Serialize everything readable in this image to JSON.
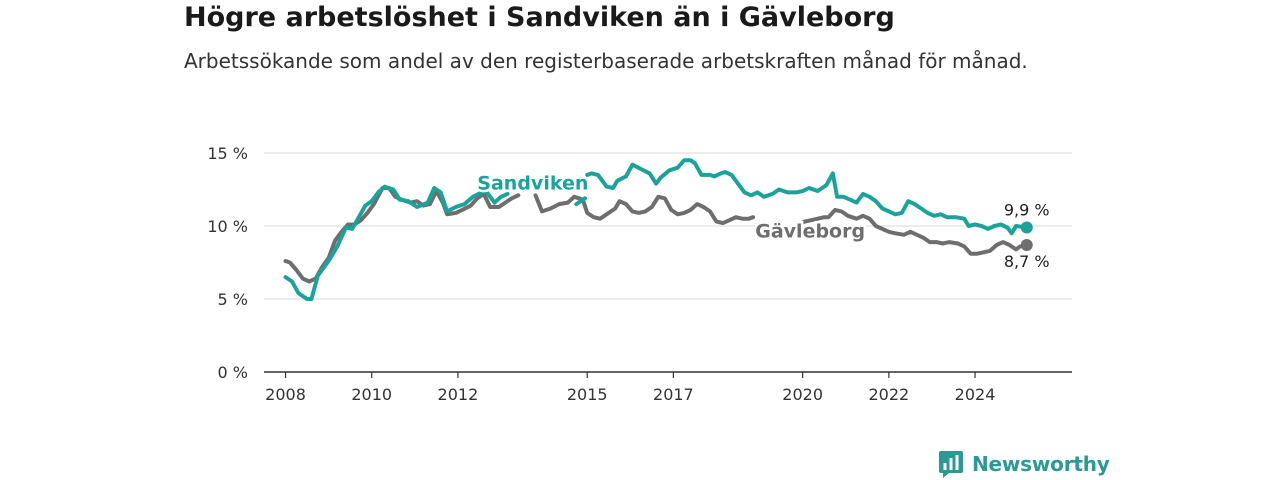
{
  "title": "Högre arbetslöshet i Sandviken än i Gävleborg",
  "subtitle": "Arbetssökande som andel av den registerbaserade arbetskraften månad för månad.",
  "brand": {
    "name": "Newsworthy",
    "icon": "newsworthy-chart-icon",
    "color": "#2a9a94"
  },
  "chart_data": {
    "type": "line",
    "title": "Högre arbetslöshet i Sandviken än i Gävleborg",
    "subtitle": "Arbetssökande som andel av den registerbaserade arbetskraften månad för månad.",
    "xlabel": "",
    "ylabel": "",
    "xlim": [
      2007.5,
      2026.25
    ],
    "ylim": [
      0,
      15
    ],
    "x_ticks": [
      2008,
      2010,
      2012,
      2015,
      2017,
      2020,
      2022,
      2024
    ],
    "x_tick_labels": [
      "2008",
      "2010",
      "2012",
      "2015",
      "2017",
      "2020",
      "2022",
      "2024"
    ],
    "y_ticks": [
      0,
      5,
      10,
      15
    ],
    "y_tick_labels": [
      "0 %",
      "5 %",
      "10 %",
      "15 %"
    ],
    "grid": true,
    "legend": "inline labels",
    "series": [
      {
        "name": "Sandviken",
        "color": "#1aa39a",
        "end_label": "9,9 %",
        "points": [
          [
            2008.0,
            6.5
          ],
          [
            2008.15,
            6.2
          ],
          [
            2008.3,
            5.4
          ],
          [
            2008.5,
            5.0
          ],
          [
            2008.6,
            5.0
          ],
          [
            2008.75,
            6.6
          ],
          [
            2009.0,
            7.6
          ],
          [
            2009.2,
            8.6
          ],
          [
            2009.4,
            9.9
          ],
          [
            2009.55,
            9.8
          ],
          [
            2009.7,
            10.6
          ],
          [
            2009.85,
            11.4
          ],
          [
            2010.0,
            11.7
          ],
          [
            2010.15,
            12.3
          ],
          [
            2010.3,
            12.7
          ],
          [
            2010.5,
            12.5
          ],
          [
            2010.65,
            11.8
          ],
          [
            2010.85,
            11.7
          ],
          [
            2011.05,
            11.3
          ],
          [
            2011.3,
            11.6
          ],
          [
            2011.45,
            12.6
          ],
          [
            2011.6,
            12.3
          ],
          [
            2011.75,
            11.0
          ],
          [
            2011.95,
            11.3
          ],
          [
            2012.15,
            11.5
          ],
          [
            2012.35,
            12.0
          ],
          [
            2012.55,
            12.3
          ],
          [
            2012.65,
            12.4
          ],
          [
            2012.85,
            11.6
          ],
          [
            2013.0,
            12.0
          ],
          [
            2013.15,
            12.2
          ],
          [
            null,
            null
          ],
          [
            2014.75,
            11.5
          ],
          [
            2014.95,
            11.9
          ],
          [
            null,
            null
          ],
          [
            2015.0,
            13.5
          ],
          [
            2015.1,
            13.6
          ],
          [
            2015.25,
            13.5
          ],
          [
            2015.45,
            12.7
          ],
          [
            2015.6,
            12.6
          ],
          [
            2015.7,
            13.1
          ],
          [
            2015.9,
            13.4
          ],
          [
            2016.05,
            14.2
          ],
          [
            2016.25,
            13.9
          ],
          [
            2016.45,
            13.6
          ],
          [
            2016.6,
            12.9
          ],
          [
            2016.7,
            13.3
          ],
          [
            2016.9,
            13.8
          ],
          [
            2017.1,
            14.0
          ],
          [
            2017.25,
            14.5
          ],
          [
            2017.4,
            14.5
          ],
          [
            2017.5,
            14.3
          ],
          [
            2017.65,
            13.5
          ],
          [
            2017.85,
            13.5
          ],
          [
            2017.95,
            13.4
          ],
          [
            2018.1,
            13.6
          ],
          [
            2018.2,
            13.7
          ],
          [
            2018.35,
            13.5
          ],
          [
            2018.5,
            12.9
          ],
          [
            2018.65,
            12.3
          ],
          [
            2018.8,
            12.1
          ],
          [
            2018.95,
            12.3
          ],
          [
            2019.1,
            12.0
          ],
          [
            2019.3,
            12.2
          ],
          [
            2019.45,
            12.5
          ],
          [
            2019.65,
            12.3
          ],
          [
            2019.85,
            12.3
          ],
          [
            2020.0,
            12.4
          ],
          [
            2020.15,
            12.6
          ],
          [
            2020.35,
            12.4
          ],
          [
            2020.55,
            12.8
          ],
          [
            2020.7,
            13.6
          ],
          [
            2020.8,
            12.0
          ],
          [
            2020.95,
            12.0
          ],
          [
            2021.1,
            11.8
          ],
          [
            2021.25,
            11.6
          ],
          [
            2021.4,
            12.2
          ],
          [
            2021.55,
            12.0
          ],
          [
            2021.7,
            11.7
          ],
          [
            2021.85,
            11.2
          ],
          [
            2022.0,
            11.0
          ],
          [
            2022.15,
            10.8
          ],
          [
            2022.3,
            10.9
          ],
          [
            2022.45,
            11.7
          ],
          [
            2022.6,
            11.5
          ],
          [
            2022.75,
            11.2
          ],
          [
            2022.9,
            10.9
          ],
          [
            2023.05,
            10.7
          ],
          [
            2023.2,
            10.8
          ],
          [
            2023.35,
            10.6
          ],
          [
            2023.55,
            10.6
          ],
          [
            2023.75,
            10.5
          ],
          [
            2023.85,
            10.0
          ],
          [
            2024.0,
            10.1
          ],
          [
            2024.15,
            10.0
          ],
          [
            2024.3,
            9.8
          ],
          [
            2024.45,
            10.0
          ],
          [
            2024.6,
            10.1
          ],
          [
            2024.75,
            9.9
          ],
          [
            2024.85,
            9.5
          ],
          [
            2024.95,
            10.0
          ],
          [
            2025.2,
            9.9
          ]
        ]
      },
      {
        "name": "Gävleborg",
        "color": "#6e6e6e",
        "end_label": "8,7 %",
        "points": [
          [
            2008.0,
            7.6
          ],
          [
            2008.1,
            7.5
          ],
          [
            2008.25,
            7.0
          ],
          [
            2008.4,
            6.4
          ],
          [
            2008.55,
            6.2
          ],
          [
            2008.7,
            6.4
          ],
          [
            2008.85,
            7.2
          ],
          [
            2009.0,
            7.8
          ],
          [
            2009.15,
            9.0
          ],
          [
            2009.3,
            9.6
          ],
          [
            2009.45,
            10.1
          ],
          [
            2009.6,
            10.1
          ],
          [
            2009.75,
            10.4
          ],
          [
            2009.9,
            10.9
          ],
          [
            2010.05,
            11.5
          ],
          [
            2010.25,
            12.6
          ],
          [
            2010.4,
            12.6
          ],
          [
            2010.55,
            12.0
          ],
          [
            2010.7,
            11.8
          ],
          [
            2010.9,
            11.6
          ],
          [
            2011.05,
            11.7
          ],
          [
            2011.2,
            11.4
          ],
          [
            2011.35,
            11.5
          ],
          [
            2011.5,
            12.4
          ],
          [
            2011.65,
            11.6
          ],
          [
            2011.75,
            10.8
          ],
          [
            2011.95,
            10.9
          ],
          [
            2012.1,
            11.1
          ],
          [
            2012.3,
            11.4
          ],
          [
            2012.45,
            11.9
          ],
          [
            2012.6,
            12.2
          ],
          [
            2012.75,
            11.3
          ],
          [
            2012.95,
            11.3
          ],
          [
            2013.1,
            11.6
          ],
          [
            2013.25,
            11.9
          ],
          [
            2013.4,
            12.1
          ],
          [
            null,
            null
          ],
          [
            2013.8,
            12.1
          ],
          [
            2013.95,
            11.0
          ],
          [
            2014.15,
            11.2
          ],
          [
            2014.35,
            11.5
          ],
          [
            2014.55,
            11.6
          ],
          [
            2014.7,
            12.0
          ],
          [
            2014.9,
            11.8
          ],
          [
            2015.0,
            10.9
          ],
          [
            2015.15,
            10.6
          ],
          [
            2015.3,
            10.5
          ],
          [
            2015.45,
            10.8
          ],
          [
            2015.65,
            11.2
          ],
          [
            2015.75,
            11.7
          ],
          [
            2015.9,
            11.5
          ],
          [
            2016.05,
            11.0
          ],
          [
            2016.2,
            10.9
          ],
          [
            2016.35,
            11.0
          ],
          [
            2016.5,
            11.3
          ],
          [
            2016.65,
            12.0
          ],
          [
            2016.8,
            11.9
          ],
          [
            2016.95,
            11.1
          ],
          [
            2017.1,
            10.8
          ],
          [
            2017.25,
            10.9
          ],
          [
            2017.4,
            11.1
          ],
          [
            2017.55,
            11.5
          ],
          [
            2017.7,
            11.3
          ],
          [
            2017.85,
            11.0
          ],
          [
            2018.0,
            10.3
          ],
          [
            2018.15,
            10.2
          ],
          [
            2018.3,
            10.4
          ],
          [
            2018.45,
            10.6
          ],
          [
            2018.6,
            10.5
          ],
          [
            2018.75,
            10.5
          ],
          [
            2018.85,
            10.6
          ],
          [
            null,
            null
          ],
          [
            2019.9,
            10.1
          ],
          [
            2020.05,
            10.3
          ],
          [
            2020.2,
            10.4
          ],
          [
            2020.35,
            10.5
          ],
          [
            2020.5,
            10.6
          ],
          [
            2020.6,
            10.6
          ],
          [
            2020.75,
            11.1
          ],
          [
            2020.9,
            11.0
          ],
          [
            2021.05,
            10.7
          ],
          [
            2021.25,
            10.5
          ],
          [
            2021.4,
            10.7
          ],
          [
            2021.55,
            10.5
          ],
          [
            2021.7,
            10.0
          ],
          [
            2021.85,
            9.8
          ],
          [
            2022.0,
            9.6
          ],
          [
            2022.15,
            9.5
          ],
          [
            2022.35,
            9.4
          ],
          [
            2022.5,
            9.6
          ],
          [
            2022.65,
            9.4
          ],
          [
            2022.8,
            9.2
          ],
          [
            2022.95,
            8.9
          ],
          [
            2023.1,
            8.9
          ],
          [
            2023.25,
            8.8
          ],
          [
            2023.4,
            8.9
          ],
          [
            2023.6,
            8.8
          ],
          [
            2023.75,
            8.6
          ],
          [
            2023.9,
            8.1
          ],
          [
            2024.05,
            8.1
          ],
          [
            2024.2,
            8.2
          ],
          [
            2024.35,
            8.3
          ],
          [
            2024.5,
            8.7
          ],
          [
            2024.65,
            8.9
          ],
          [
            2024.8,
            8.7
          ],
          [
            2024.95,
            8.4
          ],
          [
            2025.05,
            8.6
          ],
          [
            2025.2,
            8.7
          ]
        ]
      }
    ]
  }
}
